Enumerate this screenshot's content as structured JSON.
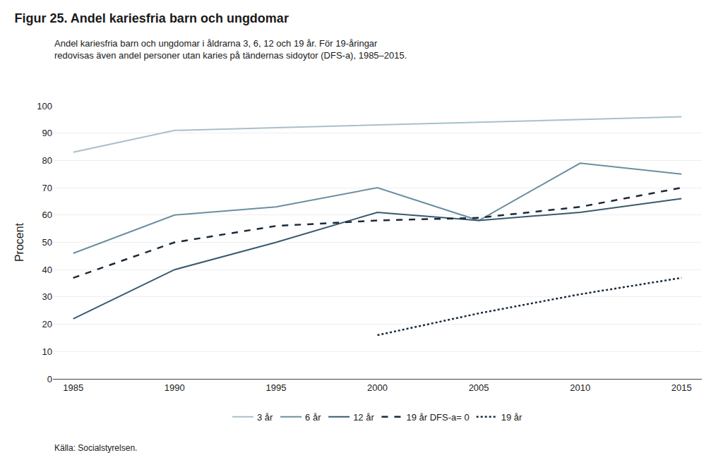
{
  "chart_data": {
    "type": "line",
    "title": "Figur 25. Andel kariesfria barn och ungdomar",
    "subtitle": "Andel kariesfria barn och ungdomar i åldrarna 3, 6, 12 och 19 år. För 19-åringar\nredovisas även andel personer utan karies på tändernas sidoytor (DFS-a), 1985–2015.",
    "ylabel": "Procent",
    "source": "Källa: Socialstyrelsen.",
    "x": [
      1985,
      1990,
      1995,
      2000,
      2005,
      2010,
      2015
    ],
    "series": [
      {
        "name": "3 år",
        "color": "#a8bfcc",
        "line_style": "solid",
        "values": [
          83,
          91,
          92,
          93,
          94,
          95,
          96
        ]
      },
      {
        "name": "6 år",
        "color": "#6b8fa0",
        "line_style": "solid",
        "values": [
          46,
          60,
          63,
          70,
          58,
          79,
          75
        ]
      },
      {
        "name": "12 år",
        "color": "#3a5a6e",
        "line_style": "solid",
        "values": [
          22,
          40,
          50,
          61,
          58,
          61,
          66
        ]
      },
      {
        "name": "19 år DFS-a= 0",
        "color": "#1a2a3a",
        "line_style": "dashed",
        "values": [
          37,
          50,
          56,
          58,
          59,
          63,
          70
        ]
      },
      {
        "name": "19 år",
        "color": "#1a2a3a",
        "line_style": "dotted",
        "values": [
          null,
          null,
          null,
          16,
          24,
          31,
          37
        ]
      }
    ],
    "xlim": [
      1984,
      2016
    ],
    "xticks": [
      1985,
      1990,
      1995,
      2000,
      2005,
      2010,
      2015
    ],
    "ylim": [
      0,
      100
    ],
    "yticks": [
      0,
      10,
      20,
      30,
      40,
      50,
      60,
      70,
      80,
      90,
      100
    ],
    "grid": true,
    "legend": "bottom"
  }
}
